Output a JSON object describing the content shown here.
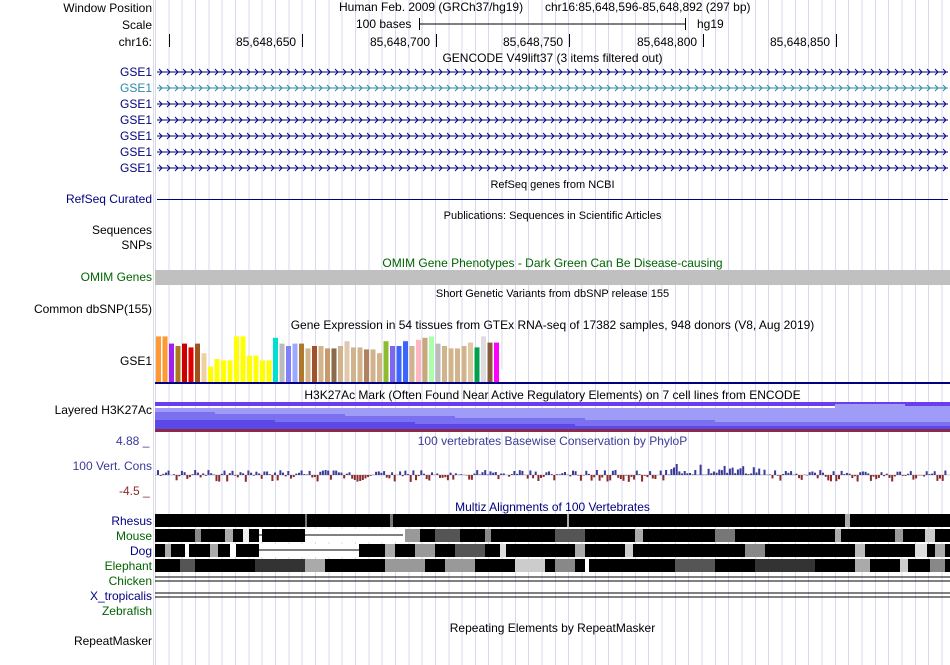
{
  "header": {
    "window_position_label": "Window Position",
    "assembly": "Human Feb. 2009 (GRCh37/hg19)",
    "position": "chr16:85,648,596-85,648,892 (297 bp)",
    "scale_label": "Scale",
    "scale_text": "100 bases",
    "db": "hg19",
    "chrom_label": "chr16:",
    "ticks": [
      "85,648,650",
      "85,648,700",
      "85,648,750",
      "85,648,800",
      "85,648,850"
    ]
  },
  "gencode": {
    "title": "GENCODE V49lift37 (3 items filtered out)",
    "rows": [
      "GSE1",
      "GSE1",
      "GSE1",
      "GSE1",
      "GSE1",
      "GSE1",
      "GSE1"
    ]
  },
  "refseq": {
    "label": "RefSeq Curated",
    "title": "RefSeq genes from NCBI"
  },
  "publications": {
    "label": "Sequences",
    "title": "Publications: Sequences in Scientific Articles"
  },
  "snps_label": "SNPs",
  "omim": {
    "label": "OMIM Genes",
    "title": "OMIM Gene Phenotypes - Dark Green Can Be Disease-causing"
  },
  "dbsnp": {
    "label": "Common dbSNP(155)",
    "title": "Short Genetic Variants from dbSNP release 155"
  },
  "gtex": {
    "label": "GSE1",
    "title": "Gene Expression in 54 tissues from GTEx RNA-seq of 17382 samples, 948 donors (V8, Aug 2019)",
    "values": [
      0.95,
      0.95,
      0.8,
      0.75,
      0.8,
      0.72,
      0.8,
      0.6,
      0.32,
      0.48,
      0.45,
      0.45,
      0.95,
      0.95,
      0.55,
      0.55,
      0.45,
      0.45,
      0.92,
      0.8,
      0.75,
      0.8,
      0.8,
      0.7,
      0.75,
      0.75,
      0.7,
      0.7,
      0.75,
      0.85,
      0.72,
      0.72,
      0.68,
      0.68,
      0.6,
      0.85,
      0.75,
      0.75,
      0.85,
      0.75,
      0.88,
      0.92,
      0.95,
      0.8,
      0.75,
      0.7,
      0.7,
      0.75,
      0.82,
      0.72,
      0.95,
      0.82,
      0.82,
      0.25
    ],
    "colors": [
      "#ff9933",
      "#ff9933",
      "#a020f0",
      "#b0781c",
      "#cc0000",
      "#e00000",
      "#a0521c",
      "#f0d0a0",
      "#ffff00",
      "#ffff00",
      "#ffff00",
      "#ffff00",
      "#ffff00",
      "#ffff00",
      "#ffff00",
      "#ffff00",
      "#ffff00",
      "#ffff00",
      "#00e0d0",
      "#bbbbbb",
      "#8080ff",
      "#99aaff",
      "#b0782c",
      "#d2b48c",
      "#a0522d",
      "#d2b48c",
      "#c89a6a",
      "#8b6a4c",
      "#d2b48c",
      "#e0c8b0",
      "#d2b48c",
      "#d2b48c",
      "#b08060",
      "#d2b48c",
      "#d2b48c",
      "#8fbc2f",
      "#7b68ee",
      "#3a66ff",
      "#3a66ff",
      "#d2b48c",
      "#ffb6c1",
      "#c8a878",
      "#aaffaa",
      "#bbbbbb",
      "#d2b48c",
      "#d2b48c",
      "#d2b48c",
      "#d2b48c",
      "#e0c8a0",
      "#00a050",
      "#dddddd",
      "#8b5a3c",
      "#ff00ff",
      "#ffffff"
    ]
  },
  "h3k27ac": {
    "label": "Layered H3K27Ac",
    "title": "H3K27Ac Mark (Often Found Near Active Regulatory Elements) on 7 cell lines from ENCODE"
  },
  "phylop": {
    "label": "100 Vert. Cons",
    "max": "4.88 _",
    "min": "-4.5 _",
    "title": "100 vertebrates Basewise Conservation by PhyloP"
  },
  "multiz": {
    "title": "Multiz Alignments of 100 Vertebrates",
    "species": [
      "Rhesus",
      "Mouse",
      "Dog",
      "Elephant",
      "Chicken",
      "X_tropicalis",
      "Zebrafish"
    ]
  },
  "repeatmasker": {
    "label": "RepeatMasker",
    "title": "Repeating Elements by RepeatMasker"
  },
  "colors": {
    "label_blue": "#000080",
    "gse_teal": "#2a8aa8",
    "omim_green": "#006400",
    "conserve_blue": "#3a3a99",
    "conserve_red": "#8b2a2a"
  }
}
